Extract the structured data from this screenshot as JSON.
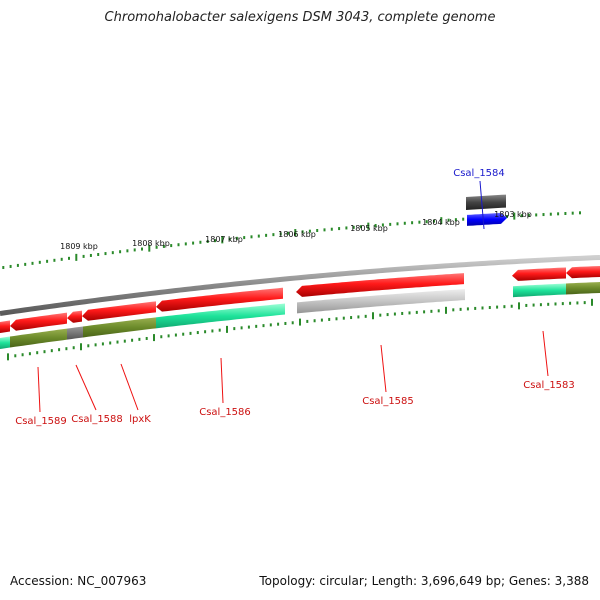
{
  "title": "Chromohalobacter salexigens DSM 3043, complete genome",
  "footer": {
    "accession": "Accession: NC_007963",
    "summary": "Topology: circular; Length: 3,696,649 bp; Genes: 3,388"
  },
  "axis_labels": [
    "1809 kbp",
    "1808 kbp",
    "1807 kbp",
    "1806 kbp",
    "1805 kbp",
    "1804 kbp",
    "1803 kbp"
  ],
  "genes": [
    {
      "label": "Csal_1584",
      "color": "#1a1acc"
    },
    {
      "label": "Csal_1583",
      "color": "#cc1111"
    },
    {
      "label": "Csal_1585",
      "color": "#cc1111"
    },
    {
      "label": "Csal_1586",
      "color": "#cc1111"
    },
    {
      "label": "lpxK",
      "color": "#cc1111"
    },
    {
      "label": "Csal_1588",
      "color": "#cc1111"
    },
    {
      "label": "Csal_1589",
      "color": "#cc1111"
    }
  ],
  "colors": {
    "cds_red": "#ee1111",
    "forward_blue": "#1111ee",
    "backbone": "#888888",
    "tick_green": "#2a8a2a",
    "cog_green": "#2ee6a0",
    "olive": "#6b8a2a",
    "gray": "#aaaaaa"
  }
}
